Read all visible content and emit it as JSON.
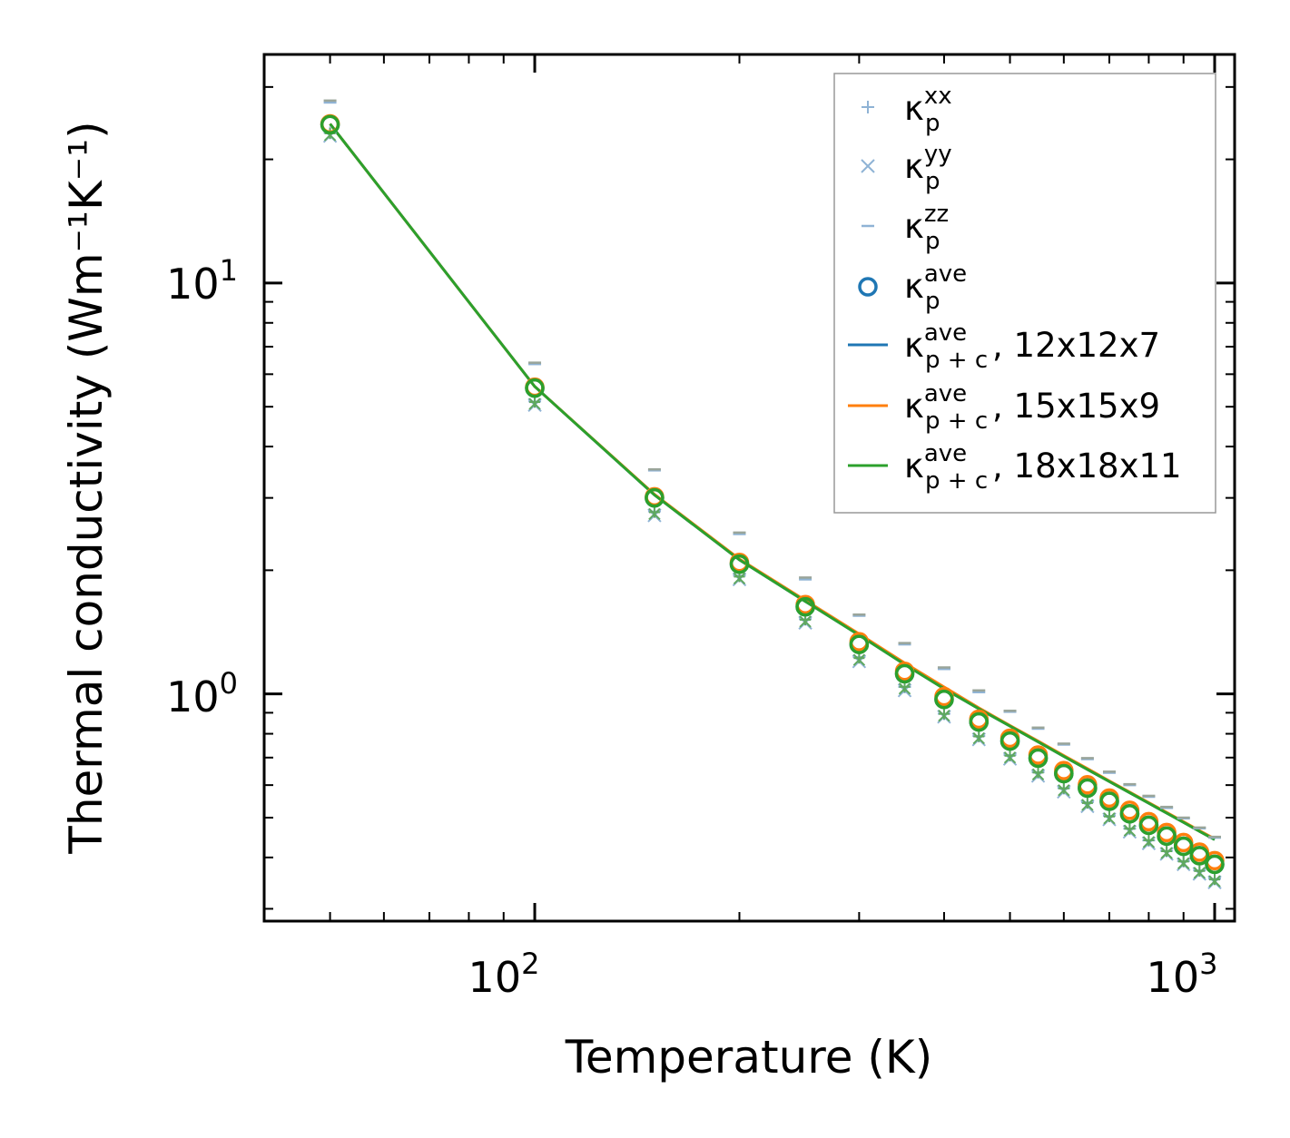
{
  "chart_data": {
    "type": "scatter",
    "xscale": "log",
    "yscale": "log",
    "xlabel": "Temperature (K)",
    "ylabel": "Thermal conductivity (Wm⁻¹K⁻¹)",
    "xlim": [
      40,
      1070
    ],
    "ylim": [
      0.28,
      36
    ],
    "xticks": [
      {
        "value": 100,
        "base": "10",
        "exp": "2"
      },
      {
        "value": 1000,
        "base": "10",
        "exp": "3"
      }
    ],
    "yticks": [
      {
        "value": 1,
        "base": "10",
        "exp": "0"
      },
      {
        "value": 10,
        "base": "10",
        "exp": "1"
      }
    ],
    "x": [
      50,
      100,
      150,
      200,
      250,
      300,
      350,
      400,
      450,
      500,
      550,
      600,
      650,
      700,
      750,
      800,
      850,
      900,
      950,
      1000
    ],
    "series": [
      {
        "name": "κ_p^xx",
        "label": "κ",
        "sub": "p",
        "sup": "xx",
        "kind": "marker",
        "marker": "plus",
        "color": "#8fb3d5",
        "values": [
          23.2,
          5.15,
          2.78,
          1.94,
          1.52,
          1.23,
          1.04,
          0.895,
          0.79,
          0.71,
          0.645,
          0.59,
          0.545,
          0.505,
          0.47,
          0.44,
          0.415,
          0.392,
          0.372,
          0.355
        ]
      },
      {
        "name": "κ_p^yy",
        "label": "κ",
        "sub": "p",
        "sup": "yy",
        "kind": "marker",
        "marker": "x",
        "color": "#8fb3d5",
        "values": [
          22.8,
          5.05,
          2.72,
          1.9,
          1.49,
          1.2,
          1.02,
          0.88,
          0.775,
          0.695,
          0.632,
          0.578,
          0.533,
          0.495,
          0.462,
          0.433,
          0.408,
          0.385,
          0.365,
          0.348
        ]
      },
      {
        "name": "κ_p^zz",
        "label": "κ",
        "sub": "p",
        "sup": "zz",
        "kind": "marker",
        "marker": "dash",
        "color": "#8fb3d5",
        "values": [
          27.5,
          6.35,
          3.5,
          2.45,
          1.9,
          1.55,
          1.32,
          1.15,
          1.01,
          0.905,
          0.823,
          0.753,
          0.694,
          0.643,
          0.6,
          0.562,
          0.528,
          0.498,
          0.471,
          0.447
        ]
      },
      {
        "name": "κ_p^ave",
        "label": "κ",
        "sub": "p",
        "sup": "ave",
        "kind": "marker",
        "marker": "circle",
        "color": "#1f77b4",
        "values": [
          24.3,
          5.55,
          3.0,
          2.07,
          1.63,
          1.32,
          1.12,
          0.97,
          0.855,
          0.768,
          0.698,
          0.64,
          0.59,
          0.548,
          0.511,
          0.479,
          0.451,
          0.426,
          0.404,
          0.385
        ]
      },
      {
        "name": "κ_p+c^ave, 12x12x7",
        "label": "κ",
        "sub": "p + c",
        "sup": "ave",
        "suffix": ", 12x12x7",
        "kind": "line",
        "color": "#1f77b4",
        "values": [
          24.4,
          5.6,
          3.05,
          2.12,
          1.68,
          1.39,
          1.18,
          1.03,
          0.92,
          0.835,
          0.765,
          0.705,
          0.655,
          0.612,
          0.575,
          0.542,
          0.513,
          0.487,
          0.463,
          0.442
        ]
      },
      {
        "name": "κ_p+c^ave, 15x15x9",
        "label": "κ",
        "sub": "p + c",
        "sup": "ave",
        "suffix": ", 15x15x9",
        "kind": "line",
        "color": "#ff7f0e",
        "values": [
          24.4,
          5.6,
          3.06,
          2.13,
          1.69,
          1.4,
          1.19,
          1.04,
          0.925,
          0.838,
          0.768,
          0.708,
          0.658,
          0.614,
          0.577,
          0.544,
          0.515,
          0.489,
          0.465,
          0.444
        ]
      },
      {
        "name": "κ_p+c^ave, 18x18x11",
        "label": "κ",
        "sub": "p + c",
        "sup": "ave",
        "suffix": ", 18x18x11",
        "kind": "line",
        "color": "#2ca02c",
        "values": [
          24.4,
          5.6,
          3.05,
          2.12,
          1.68,
          1.39,
          1.18,
          1.03,
          0.92,
          0.835,
          0.765,
          0.705,
          0.655,
          0.612,
          0.575,
          0.542,
          0.513,
          0.487,
          0.463,
          0.442
        ]
      }
    ],
    "overlay_markers": [
      {
        "name": "orange-open-circles",
        "color": "#ff7f0e",
        "values": [
          24.4,
          5.58,
          3.02,
          2.09,
          1.65,
          1.34,
          1.135,
          0.985,
          0.868,
          0.78,
          0.71,
          0.651,
          0.601,
          0.558,
          0.521,
          0.489,
          0.46,
          0.435,
          0.412,
          0.393
        ]
      },
      {
        "name": "green-open-circles",
        "color": "#2ca02c",
        "values": [
          24.3,
          5.55,
          3.0,
          2.07,
          1.63,
          1.32,
          1.12,
          0.97,
          0.855,
          0.768,
          0.698,
          0.64,
          0.59,
          0.548,
          0.511,
          0.479,
          0.451,
          0.426,
          0.404,
          0.385
        ]
      },
      {
        "name": "green-cross-markers",
        "color": "#5fa85f",
        "values": [
          22.9,
          5.08,
          2.74,
          1.91,
          1.5,
          1.21,
          1.03,
          0.885,
          0.78,
          0.7,
          0.637,
          0.583,
          0.537,
          0.498,
          0.465,
          0.436,
          0.41,
          0.387,
          0.367,
          0.35
        ]
      },
      {
        "name": "gray-dash-markers",
        "color": "#9aa59a",
        "values": [
          27.8,
          6.4,
          3.52,
          2.47,
          1.92,
          1.56,
          1.33,
          1.16,
          1.02,
          0.91,
          0.828,
          0.757,
          0.698,
          0.647,
          0.603,
          0.565,
          0.531,
          0.5,
          0.473,
          0.449
        ]
      }
    ],
    "legend": {
      "position": "top-right"
    }
  }
}
